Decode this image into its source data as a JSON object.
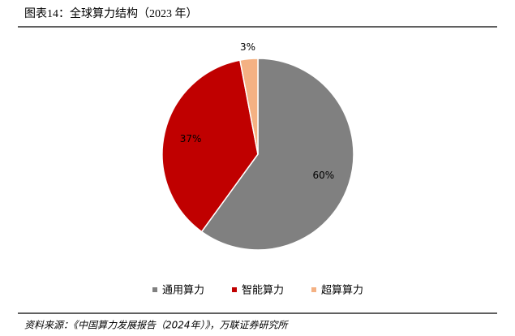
{
  "chart_data": {
    "type": "pie",
    "title": "图表14：全球算力结构（2023 年）",
    "categories": [
      "通用算力",
      "智能算力",
      "超算算力"
    ],
    "values": [
      60,
      37,
      3
    ],
    "value_labels": [
      "60%",
      "37%",
      "3%"
    ],
    "colors": [
      "#808080",
      "#c00000",
      "#f4b183"
    ],
    "source": "资料来源：《中国算力发展报告（2024年）》，万联证券研究所"
  }
}
